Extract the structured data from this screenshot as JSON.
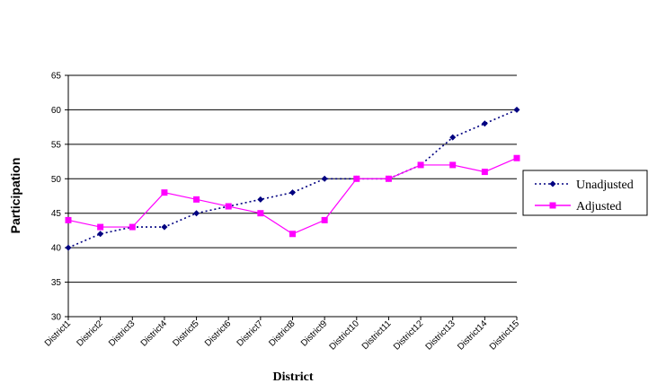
{
  "chart_data": {
    "type": "line",
    "title": "",
    "xlabel": "District",
    "ylabel": "Participation",
    "ylim": [
      30,
      65
    ],
    "ytick_step": 5,
    "grid": "horizontal",
    "legend_position": "right",
    "categories": [
      "District1",
      "District2",
      "District3",
      "District4",
      "District5",
      "District6",
      "District7",
      "District8",
      "District9",
      "District10",
      "District11",
      "District12",
      "District13",
      "District14",
      "District15"
    ],
    "series": [
      {
        "name": "Unadjusted",
        "color": "#000080",
        "line_style": "dotted",
        "marker": "diamond",
        "values": [
          40,
          42,
          43,
          43,
          45,
          46,
          47,
          48,
          50,
          50,
          50,
          52,
          56,
          58,
          60
        ]
      },
      {
        "name": "Adjusted",
        "color": "#ff00ff",
        "line_style": "solid",
        "marker": "square",
        "values": [
          44,
          43,
          43,
          48,
          47,
          46,
          45,
          42,
          44,
          50,
          50,
          52,
          52,
          51,
          53
        ]
      }
    ]
  }
}
